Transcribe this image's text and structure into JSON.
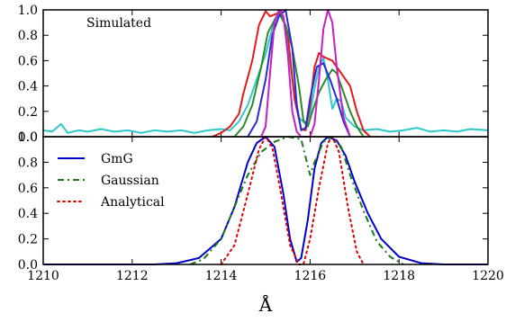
{
  "chart_data": [
    {
      "type": "line",
      "panel": "top",
      "title": "",
      "annotation": "Simulated",
      "xlabel": "",
      "ylabel": "",
      "xlim": [
        1210,
        1220
      ],
      "ylim": [
        0.0,
        1.0
      ],
      "yticks": [
        "0.0",
        "0.2",
        "0.4",
        "0.6",
        "0.8",
        "1.0"
      ],
      "grid": false,
      "series": [
        {
          "color": "#2ec8c8",
          "points": [
            [
              1210,
              0.05
            ],
            [
              1210.2,
              0.04
            ],
            [
              1210.4,
              0.1
            ],
            [
              1210.55,
              0.03
            ],
            [
              1210.8,
              0.05
            ],
            [
              1211.0,
              0.04
            ],
            [
              1211.3,
              0.06
            ],
            [
              1211.6,
              0.04
            ],
            [
              1211.9,
              0.05
            ],
            [
              1212.2,
              0.03
            ],
            [
              1212.5,
              0.05
            ],
            [
              1212.8,
              0.04
            ],
            [
              1213.1,
              0.05
            ],
            [
              1213.4,
              0.03
            ],
            [
              1213.7,
              0.05
            ],
            [
              1214.0,
              0.06
            ],
            [
              1214.2,
              0.05
            ],
            [
              1214.4,
              0.12
            ],
            [
              1214.6,
              0.25
            ],
            [
              1214.8,
              0.45
            ],
            [
              1215.0,
              0.65
            ],
            [
              1215.2,
              0.92
            ],
            [
              1215.3,
              0.97
            ],
            [
              1215.45,
              0.88
            ],
            [
              1215.6,
              0.45
            ],
            [
              1215.75,
              0.15
            ],
            [
              1215.9,
              0.1
            ],
            [
              1216.0,
              0.18
            ],
            [
              1216.1,
              0.38
            ],
            [
              1216.2,
              0.55
            ],
            [
              1216.3,
              0.62
            ],
            [
              1216.4,
              0.45
            ],
            [
              1216.5,
              0.22
            ],
            [
              1216.6,
              0.3
            ],
            [
              1216.7,
              0.28
            ],
            [
              1216.8,
              0.15
            ],
            [
              1217.0,
              0.08
            ],
            [
              1217.2,
              0.05
            ],
            [
              1217.5,
              0.06
            ],
            [
              1217.8,
              0.04
            ],
            [
              1218.1,
              0.05
            ],
            [
              1218.4,
              0.07
            ],
            [
              1218.7,
              0.04
            ],
            [
              1219.0,
              0.05
            ],
            [
              1219.3,
              0.04
            ],
            [
              1219.6,
              0.06
            ],
            [
              1220.0,
              0.05
            ]
          ]
        },
        {
          "color": "#e31a1c",
          "points": [
            [
              1213.8,
              0.0
            ],
            [
              1214.0,
              0.03
            ],
            [
              1214.2,
              0.08
            ],
            [
              1214.4,
              0.18
            ],
            [
              1214.5,
              0.34
            ],
            [
              1214.7,
              0.6
            ],
            [
              1214.85,
              0.88
            ],
            [
              1215.0,
              0.99
            ],
            [
              1215.1,
              0.95
            ],
            [
              1215.25,
              0.97
            ],
            [
              1215.35,
              0.99
            ],
            [
              1215.5,
              0.8
            ],
            [
              1215.65,
              0.3
            ],
            [
              1215.8,
              0.06
            ],
            [
              1215.9,
              0.05
            ],
            [
              1216.0,
              0.25
            ],
            [
              1216.1,
              0.55
            ],
            [
              1216.2,
              0.66
            ],
            [
              1216.3,
              0.63
            ],
            [
              1216.5,
              0.6
            ],
            [
              1216.7,
              0.5
            ],
            [
              1216.9,
              0.4
            ],
            [
              1217.05,
              0.2
            ],
            [
              1217.2,
              0.05
            ],
            [
              1217.35,
              0.0
            ]
          ]
        },
        {
          "color": "#2c8a2c",
          "points": [
            [
              1214.3,
              0.0
            ],
            [
              1214.5,
              0.08
            ],
            [
              1214.7,
              0.25
            ],
            [
              1214.9,
              0.55
            ],
            [
              1215.05,
              0.82
            ],
            [
              1215.2,
              0.92
            ],
            [
              1215.3,
              0.98
            ],
            [
              1215.45,
              0.88
            ],
            [
              1215.6,
              0.7
            ],
            [
              1215.75,
              0.4
            ],
            [
              1215.85,
              0.13
            ],
            [
              1215.95,
              0.08
            ],
            [
              1216.05,
              0.2
            ],
            [
              1216.2,
              0.35
            ],
            [
              1216.35,
              0.45
            ],
            [
              1216.5,
              0.53
            ],
            [
              1216.6,
              0.5
            ],
            [
              1216.75,
              0.35
            ],
            [
              1216.9,
              0.2
            ],
            [
              1217.05,
              0.08
            ],
            [
              1217.2,
              0.0
            ]
          ]
        },
        {
          "color": "#2b2bd6",
          "points": [
            [
              1214.6,
              0.0
            ],
            [
              1214.8,
              0.12
            ],
            [
              1215.0,
              0.45
            ],
            [
              1215.15,
              0.8
            ],
            [
              1215.3,
              0.95
            ],
            [
              1215.45,
              1.0
            ],
            [
              1215.6,
              0.7
            ],
            [
              1215.7,
              0.25
            ],
            [
              1215.8,
              0.05
            ],
            [
              1215.9,
              0.07
            ],
            [
              1216.0,
              0.3
            ],
            [
              1216.15,
              0.55
            ],
            [
              1216.3,
              0.58
            ],
            [
              1216.45,
              0.45
            ],
            [
              1216.6,
              0.3
            ],
            [
              1216.75,
              0.12
            ],
            [
              1216.9,
              0.0
            ]
          ]
        },
        {
          "color": "#c41ec4",
          "points": [
            [
              1214.9,
              0.0
            ],
            [
              1215.0,
              0.08
            ],
            [
              1215.1,
              0.5
            ],
            [
              1215.2,
              0.9
            ],
            [
              1215.3,
              1.0
            ],
            [
              1215.4,
              0.95
            ],
            [
              1215.5,
              0.65
            ],
            [
              1215.6,
              0.2
            ],
            [
              1215.7,
              0.04
            ],
            [
              1215.8,
              0.0
            ],
            [
              1216.0,
              0.0
            ],
            [
              1216.1,
              0.1
            ],
            [
              1216.2,
              0.45
            ],
            [
              1216.3,
              0.85
            ],
            [
              1216.4,
              1.0
            ],
            [
              1216.5,
              0.9
            ],
            [
              1216.6,
              0.55
            ],
            [
              1216.75,
              0.15
            ],
            [
              1216.9,
              0.0
            ]
          ]
        }
      ]
    },
    {
      "type": "line",
      "panel": "bottom",
      "title": "",
      "xlabel": "Å",
      "ylabel": "",
      "xlim": [
        1210,
        1220
      ],
      "ylim": [
        0.0,
        1.0
      ],
      "xticks": [
        "1210",
        "1212",
        "1214",
        "1216",
        "1218",
        "1220"
      ],
      "yticks": [
        "0.0",
        "0.2",
        "0.4",
        "0.6",
        "0.8",
        "1.0"
      ],
      "grid": false,
      "legend": "top-left",
      "series": [
        {
          "name": "GmG",
          "color": "#0000cc",
          "dash": "solid",
          "points": [
            [
              1210,
              0.0
            ],
            [
              1212.5,
              0.0
            ],
            [
              1213.0,
              0.01
            ],
            [
              1213.5,
              0.05
            ],
            [
              1214.0,
              0.2
            ],
            [
              1214.3,
              0.45
            ],
            [
              1214.6,
              0.8
            ],
            [
              1214.8,
              0.95
            ],
            [
              1215.0,
              1.0
            ],
            [
              1215.2,
              0.92
            ],
            [
              1215.4,
              0.55
            ],
            [
              1215.55,
              0.2
            ],
            [
              1215.7,
              0.02
            ],
            [
              1215.8,
              0.05
            ],
            [
              1215.95,
              0.35
            ],
            [
              1216.1,
              0.75
            ],
            [
              1216.25,
              0.95
            ],
            [
              1216.4,
              1.0
            ],
            [
              1216.6,
              0.97
            ],
            [
              1216.8,
              0.85
            ],
            [
              1217.0,
              0.65
            ],
            [
              1217.3,
              0.4
            ],
            [
              1217.6,
              0.2
            ],
            [
              1218.0,
              0.06
            ],
            [
              1218.5,
              0.01
            ],
            [
              1219.0,
              0.0
            ],
            [
              1220,
              0.0
            ]
          ]
        },
        {
          "name": "Gaussian",
          "color": "#1a7a1a",
          "dash": "dashdot",
          "points": [
            [
              1213.3,
              0.0
            ],
            [
              1213.6,
              0.04
            ],
            [
              1214.0,
              0.2
            ],
            [
              1214.3,
              0.45
            ],
            [
              1214.6,
              0.7
            ],
            [
              1214.9,
              0.88
            ],
            [
              1215.2,
              0.96
            ],
            [
              1215.5,
              1.0
            ],
            [
              1215.8,
              0.98
            ],
            [
              1216.0,
              0.7
            ],
            [
              1216.1,
              0.8
            ],
            [
              1216.3,
              0.96
            ],
            [
              1216.5,
              1.0
            ],
            [
              1216.7,
              0.92
            ],
            [
              1216.9,
              0.7
            ],
            [
              1217.2,
              0.42
            ],
            [
              1217.5,
              0.18
            ],
            [
              1217.8,
              0.06
            ],
            [
              1218.1,
              0.0
            ]
          ]
        },
        {
          "name": "Analytical",
          "color": "#e00000",
          "dash": "dotted",
          "points": [
            [
              1214.0,
              0.0
            ],
            [
              1214.3,
              0.15
            ],
            [
              1214.6,
              0.55
            ],
            [
              1214.85,
              0.9
            ],
            [
              1215.0,
              1.0
            ],
            [
              1215.15,
              0.92
            ],
            [
              1215.35,
              0.55
            ],
            [
              1215.55,
              0.15
            ],
            [
              1215.75,
              0.0
            ],
            [
              1215.85,
              0.0
            ],
            [
              1216.0,
              0.2
            ],
            [
              1216.2,
              0.6
            ],
            [
              1216.4,
              0.95
            ],
            [
              1216.5,
              1.0
            ],
            [
              1216.65,
              0.88
            ],
            [
              1216.85,
              0.45
            ],
            [
              1217.05,
              0.1
            ],
            [
              1217.2,
              0.0
            ]
          ]
        }
      ]
    }
  ]
}
